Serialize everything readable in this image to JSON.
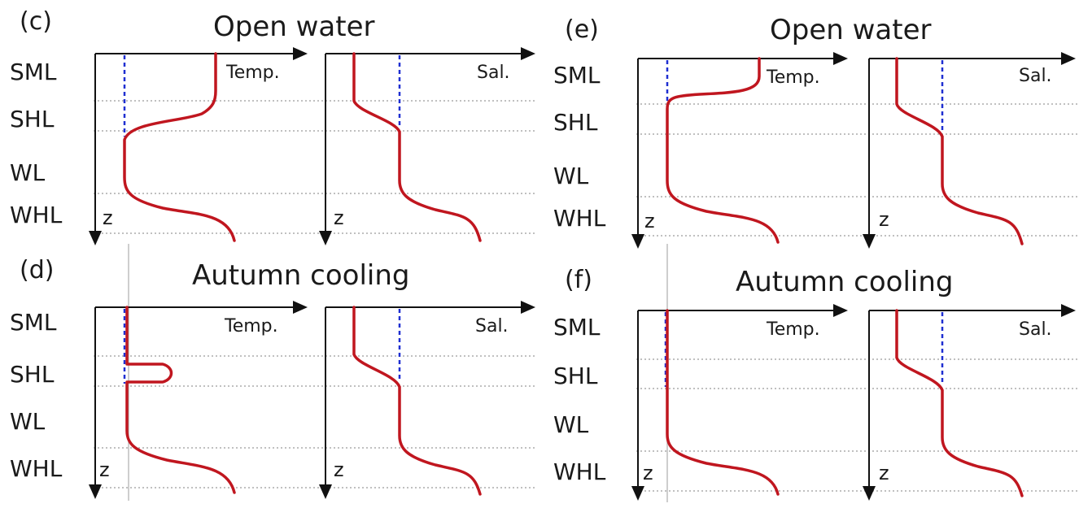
{
  "colors": {
    "profile": "#c0161f",
    "reference": "#1f2fd1",
    "axis": "#111111",
    "text": "#1a1a1a"
  },
  "layers": [
    "SML",
    "SHL",
    "WL",
    "WHL"
  ],
  "axis_labels": {
    "temperature": "Temp.",
    "salinity": "Sal.",
    "depth": "z"
  },
  "panels": {
    "c": {
      "letter": "(c)",
      "title": "Open water"
    },
    "d": {
      "letter": "(d)",
      "title": "Autumn cooling"
    },
    "e": {
      "letter": "(e)",
      "title": "Open water"
    },
    "f": {
      "letter": "(f)",
      "title": "Autumn cooling"
    }
  }
}
